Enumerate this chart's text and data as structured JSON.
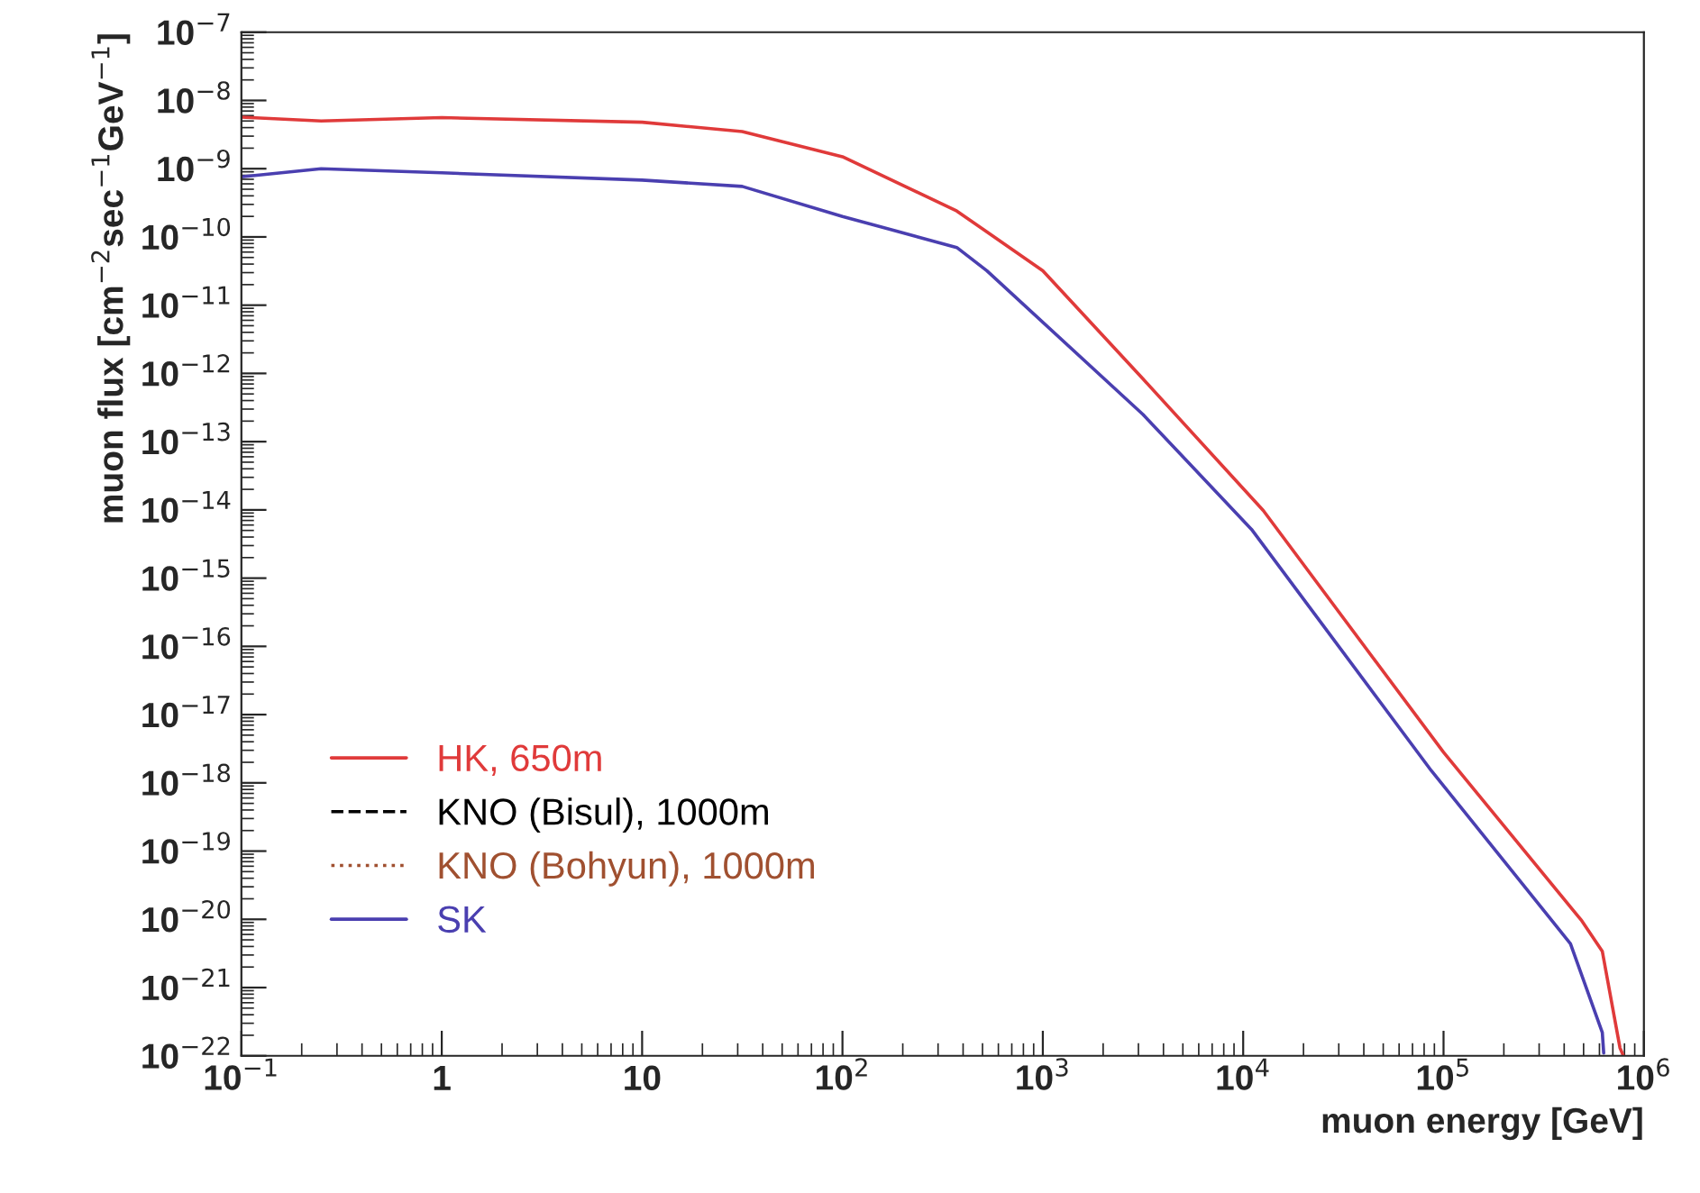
{
  "chart_data": {
    "type": "line",
    "xlabel": "muon energy [GeV]",
    "ylabel": "muon flux [cm$^{−2}$sec$^{−1}$GeV$^{−1}$]",
    "log": "xy",
    "grid": false,
    "legend": "bottom left",
    "xlim": [
      0.1,
      1000000
    ],
    "ylim": [
      1e-22,
      1e-07
    ],
    "xticks": [
      {
        "value": 0.1,
        "label": "10$^{−1}$"
      },
      1,
      10,
      {
        "value": 100,
        "label": "10$^{2}$"
      },
      {
        "value": 1000,
        "label": "10$^{3}$"
      },
      {
        "value": 10000,
        "label": "10$^{4}$"
      },
      {
        "value": 100000,
        "label": "10$^{5}$"
      },
      {
        "value": 1000000,
        "label": "10$^{6}$"
      }
    ],
    "yticks": [
      {
        "value": 1e-22,
        "label": "10$^{−22}$"
      },
      {
        "value": 1e-21,
        "label": "10$^{−21}$"
      },
      {
        "value": 1e-20,
        "label": "10$^{−20}$"
      },
      {
        "value": 1e-19,
        "label": "10$^{−19}$"
      },
      {
        "value": 1e-18,
        "label": "10$^{−18}$"
      },
      {
        "value": 1e-17,
        "label": "10$^{−17}$"
      },
      {
        "value": 1e-16,
        "label": "10$^{−16}$"
      },
      {
        "value": 1e-15,
        "label": "10$^{−15}$"
      },
      {
        "value": 1e-14,
        "label": "10$^{−14}$"
      },
      {
        "value": 1e-13,
        "label": "10$^{−13}$"
      },
      {
        "value": 1e-12,
        "label": "10$^{−12}$"
      },
      {
        "value": 1e-11,
        "label": "10$^{−11}$"
      },
      {
        "value": 1e-10,
        "label": "10$^{−10}$"
      },
      {
        "value": 1e-09,
        "label": "10$^{−9}$"
      },
      {
        "value": 1e-08,
        "label": "10$^{−8}$"
      },
      {
        "value": 1e-07,
        "label": "10$^{−7}$"
      }
    ],
    "series": [
      {
        "name": "HK, 650m",
        "color": "#e03a3a",
        "line_style": "solid",
        "x": [
          0.1,
          0.25,
          1,
          10,
          31.6,
          100,
          372,
          1000,
          3162,
          12590,
          100000,
          490000,
          620000,
          760000,
          790000
        ],
        "values": [
          5.7e-09,
          5e-09,
          5.6e-09,
          4.8e-09,
          3.5e-09,
          1.5e-09,
          2.4e-10,
          3.2e-11,
          8.3e-13,
          9.8e-15,
          2.8e-18,
          9.5e-21,
          3.4e-21,
          1.3e-22,
          1e-22
        ]
      },
      {
        "name": "KNO (Bisul), 1000m",
        "color": "#000000",
        "line_style": "dashed"
      },
      {
        "name": "KNO (Bohyun), 1000m",
        "color": "#a05030",
        "line_style": "dotted"
      },
      {
        "name": "SK",
        "color": "#4a3fb0",
        "line_style": "solid",
        "x": [
          0.1,
          0.25,
          1,
          10,
          31.6,
          100,
          372,
          525,
          3162,
          11000,
          87000,
          430000,
          620000,
          630000
        ],
        "values": [
          7.6e-10,
          1e-09,
          8.7e-10,
          6.8e-10,
          5.5e-10,
          2e-10,
          7e-11,
          3.2e-11,
          2.5e-13,
          5.2e-15,
          1.5e-18,
          4.4e-21,
          2.2e-22,
          1.1e-22
        ]
      }
    ]
  }
}
